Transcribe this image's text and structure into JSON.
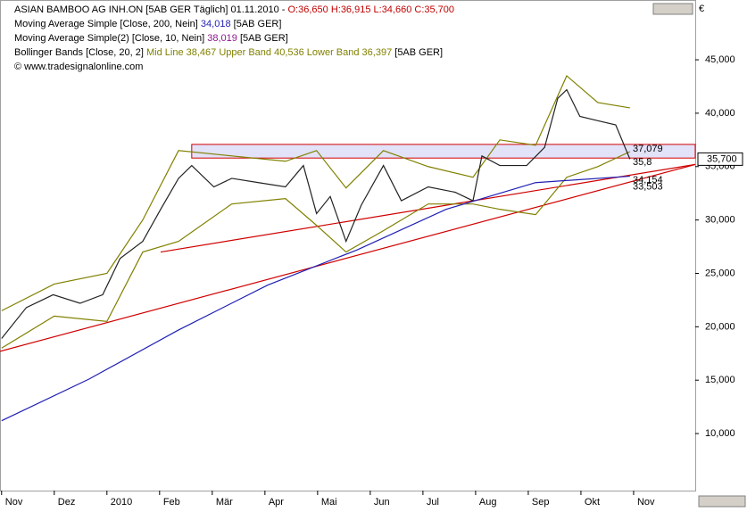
{
  "chart_data": {
    "type": "line",
    "header": [
      {
        "text": "ASIAN BAMBOO AG  INH.ON [5AB GER  Täglich] 01.11.2010 - ",
        "value_text": "O:36,650 H:36,915 L:34,660 C:35,700",
        "value_color": "#c00000",
        "suffix": ""
      },
      {
        "text": "Moving Average Simple [Close, 200, Nein] ",
        "value_text": "34,018",
        "value_color": "#1f1fb4",
        "suffix": " [5AB GER]"
      },
      {
        "text": "Moving Average Simple(2) [Close, 10, Nein] ",
        "value_text": "38,019",
        "value_color": "#8b1a8b",
        "suffix": " [5AB GER]"
      },
      {
        "text": "Bollinger Bands [Close, 20, 2] ",
        "value_text": "Mid Line 38,467 Upper Band 40,536 Lower Band 36,397",
        "value_color": "#808000",
        "suffix": " [5AB GER]"
      },
      {
        "text": "© www.tradesignalonline.com",
        "value_text": "",
        "value_color": "#000",
        "suffix": ""
      }
    ],
    "currency": "€",
    "last_price": {
      "value": 35.7,
      "label": "35,700"
    },
    "xlim": [
      -0.03,
      13.17
    ],
    "xticks": [
      {
        "value": 0,
        "label": "Nov"
      },
      {
        "value": 1,
        "label": "Dez"
      },
      {
        "value": 2,
        "label": "2010"
      },
      {
        "value": 3,
        "label": "Feb"
      },
      {
        "value": 4,
        "label": "Mär"
      },
      {
        "value": 5,
        "label": "Apr"
      },
      {
        "value": 6,
        "label": "Mai"
      },
      {
        "value": 7,
        "label": "Jun"
      },
      {
        "value": 8,
        "label": "Jul"
      },
      {
        "value": 9,
        "label": "Aug"
      },
      {
        "value": 10,
        "label": "Sep"
      },
      {
        "value": 11,
        "label": "Okt"
      },
      {
        "value": 12,
        "label": "Nov"
      }
    ],
    "ylim": [
      4.66,
      50.6
    ],
    "yticks": [
      {
        "value": 10,
        "label": "10,000"
      },
      {
        "value": 15,
        "label": "15,000"
      },
      {
        "value": 20,
        "label": "20,000"
      },
      {
        "value": 25,
        "label": "25,000"
      },
      {
        "value": 30,
        "label": "30,000"
      },
      {
        "value": 35,
        "label": "35,000"
      },
      {
        "value": 40,
        "label": "40,000"
      },
      {
        "value": 45,
        "label": "45,000"
      }
    ],
    "series": [
      {
        "color": "#808000",
        "x": [
          0,
          1,
          2,
          2.68,
          3.36,
          4.37,
          5.39,
          5.98,
          6.54,
          7.25,
          8.1,
          8.95,
          9.46,
          10.14,
          10.73,
          11.32,
          11.93
        ],
        "values": [
          21.5,
          24,
          25,
          30,
          36.5,
          36,
          35.5,
          36.5,
          33,
          36.5,
          35,
          34,
          37.5,
          37,
          43.5,
          41,
          40.5
        ]
      },
      {
        "color": "#808000",
        "x": [
          0,
          1,
          2,
          2.68,
          3.36,
          4.37,
          5.39,
          5.98,
          6.54,
          7.25,
          8.1,
          8.95,
          9.46,
          10.14,
          10.73,
          11.32,
          11.93
        ],
        "values": [
          18,
          21,
          20.5,
          27,
          28,
          31.5,
          32,
          29.5,
          27,
          29,
          31.5,
          31.5,
          31,
          30.5,
          34,
          35,
          36.4
        ]
      },
      {
        "color": "#1f1fb4",
        "x": [
          0,
          1.66,
          3.36,
          5.05,
          6.75,
          8.44,
          10.14,
          11.93
        ],
        "values": [
          11.2,
          15.1,
          19.7,
          23.9,
          27.2,
          31.0,
          33.5,
          34.1
        ]
      },
      {
        "color": "#222222",
        "x": [
          0,
          0.47,
          0.98,
          1.49,
          1.92,
          2.25,
          2.68,
          3.02,
          3.36,
          3.61,
          4.03,
          4.37,
          4.88,
          5.39,
          5.73,
          5.98,
          6.24,
          6.54,
          6.83,
          7.25,
          7.59,
          8.1,
          8.61,
          8.95,
          9.12,
          9.46,
          9.97,
          10.31,
          10.56,
          10.73,
          10.98,
          11.32,
          11.66,
          11.93
        ],
        "values": [
          18.9,
          21.8,
          23.0,
          22.2,
          23.0,
          26.4,
          28.0,
          31.0,
          33.9,
          35.1,
          33.1,
          33.9,
          33.5,
          33.1,
          35.1,
          30.6,
          32.2,
          28.0,
          31.4,
          35.1,
          31.8,
          33.1,
          32.6,
          31.8,
          36.0,
          35.1,
          35.1,
          36.8,
          41.4,
          42.2,
          39.7,
          39.3,
          38.9,
          35.7
        ]
      }
    ],
    "trendlines": [
      {
        "color": "#d00000",
        "x": [
          -0.03,
          13.17
        ],
        "values": [
          17.7,
          35.2
        ]
      },
      {
        "color": "#d00000",
        "x": [
          3.02,
          13.17
        ],
        "values": [
          27.0,
          35.2
        ]
      }
    ],
    "zone": {
      "x": 3.61,
      "values": [
        37.079,
        35.8
      ],
      "color": "#d00000"
    },
    "annotations": [
      {
        "value": 37.079,
        "label": "37,079"
      },
      {
        "value": 35.8,
        "label": "35,8"
      },
      {
        "value": 34.154,
        "label": "34,154"
      },
      {
        "value": 33.503,
        "label": "33,503"
      }
    ]
  }
}
